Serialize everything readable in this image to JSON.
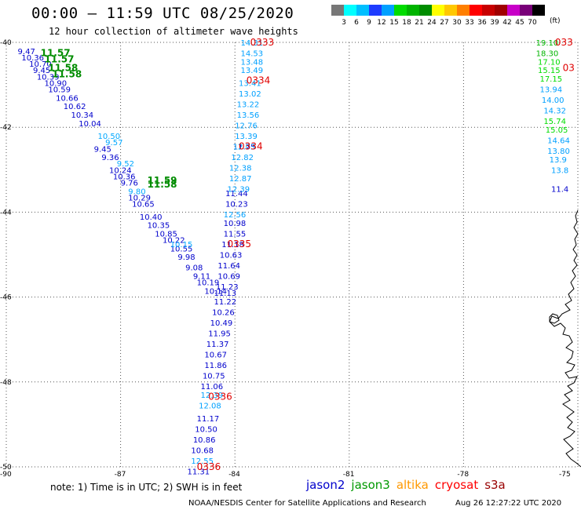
{
  "header": {
    "title": "00:00 — 11:59 UTC 08/25/2020",
    "subtitle": "12 hour collection of altimeter wave heights"
  },
  "colorbar": {
    "colors": [
      "#777777",
      "#00ffff",
      "#00bfff",
      "#1e3cff",
      "#00a0ff",
      "#00dc00",
      "#00b400",
      "#008c00",
      "#ffff00",
      "#ffc800",
      "#ff7f00",
      "#ff0000",
      "#c80000",
      "#a00000",
      "#c800c8",
      "#780078",
      "#000000"
    ],
    "labels": [
      "3",
      "6",
      "9",
      "12",
      "15",
      "18",
      "21",
      "24",
      "27",
      "30",
      "33",
      "36",
      "39",
      "42",
      "45",
      "70"
    ],
    "unit": "(ft)"
  },
  "chart_data": {
    "type": "scatter",
    "title": "00:00 — 11:59 UTC 08/25/2020",
    "subtitle": "12 hour collection of altimeter wave heights",
    "xlim": [
      -90,
      -75
    ],
    "ylim": [
      -50,
      -40
    ],
    "x_ticks": [
      "-90",
      "-87",
      "-84",
      "-81",
      "-78",
      "-75"
    ],
    "y_ticks": [
      "-40",
      "-42",
      "-44",
      "-46",
      "-48",
      "-50"
    ],
    "series": [
      {
        "name": "jason2",
        "points": [
          {
            "lon": -89.7,
            "lat": -40.2,
            "v": "9.47"
          },
          {
            "lon": -89.6,
            "lat": -40.35,
            "v": "10.36"
          },
          {
            "lon": -89.4,
            "lat": -40.5,
            "v": "10.70"
          },
          {
            "lon": -89.3,
            "lat": -40.65,
            "v": "9.45"
          },
          {
            "lon": -89.2,
            "lat": -40.8,
            "v": "10.39"
          },
          {
            "lon": -89.0,
            "lat": -40.95,
            "v": "10.90"
          },
          {
            "lon": -88.9,
            "lat": -41.1,
            "v": "10.59"
          },
          {
            "lon": -88.7,
            "lat": -41.3,
            "v": "10.66"
          },
          {
            "lon": -88.5,
            "lat": -41.5,
            "v": "10.62"
          },
          {
            "lon": -88.3,
            "lat": -41.7,
            "v": "10.34"
          },
          {
            "lon": -88.1,
            "lat": -41.9,
            "v": "10.04"
          },
          {
            "lon": -87.7,
            "lat": -42.5,
            "v": "9.45"
          },
          {
            "lon": -87.5,
            "lat": -42.7,
            "v": "9.36"
          },
          {
            "lon": -87.3,
            "lat": -43.0,
            "v": "10.24"
          },
          {
            "lon": -87.2,
            "lat": -43.15,
            "v": "10.36"
          },
          {
            "lon": -87.0,
            "lat": -43.3,
            "v": "9.76"
          },
          {
            "lon": -86.8,
            "lat": -43.65,
            "v": "10.29"
          },
          {
            "lon": -86.7,
            "lat": -43.8,
            "v": "10.65"
          },
          {
            "lon": -86.5,
            "lat": -44.1,
            "v": "10.40"
          },
          {
            "lon": -86.3,
            "lat": -44.3,
            "v": "10.35"
          },
          {
            "lon": -86.1,
            "lat": -44.5,
            "v": "10.85"
          },
          {
            "lon": -85.9,
            "lat": -44.65,
            "v": "10.22"
          },
          {
            "lon": -85.7,
            "lat": -44.85,
            "v": "10.55"
          },
          {
            "lon": -85.5,
            "lat": -45.05,
            "v": "9.98"
          },
          {
            "lon": -85.3,
            "lat": -45.3,
            "v": "9.08"
          },
          {
            "lon": -85.1,
            "lat": -45.5,
            "v": "9.11"
          },
          {
            "lon": -85.0,
            "lat": -45.65,
            "v": "10.19"
          },
          {
            "lon": -84.8,
            "lat": -45.85,
            "v": "10.14"
          },
          {
            "lon": -84.05,
            "lat": -42.45,
            "v": "11.75"
          },
          {
            "lon": -84.25,
            "lat": -43.55,
            "v": "11.44"
          },
          {
            "lon": -84.25,
            "lat": -43.8,
            "v": "10.23"
          },
          {
            "lon": -84.3,
            "lat": -44.25,
            "v": "10.98"
          },
          {
            "lon": -84.3,
            "lat": -44.5,
            "v": "11.55"
          },
          {
            "lon": -84.35,
            "lat": -44.75,
            "v": "11.18"
          },
          {
            "lon": -84.4,
            "lat": -45.0,
            "v": "10.63"
          },
          {
            "lon": -84.45,
            "lat": -45.25,
            "v": "11.64"
          },
          {
            "lon": -84.45,
            "lat": -45.5,
            "v": "10.69"
          },
          {
            "lon": -84.5,
            "lat": -45.75,
            "v": "11.23"
          },
          {
            "lon": -84.55,
            "lat": -45.9,
            "v": "11.13"
          },
          {
            "lon": -84.55,
            "lat": -46.1,
            "v": "11.22"
          },
          {
            "lon": -84.6,
            "lat": -46.35,
            "v": "10.26"
          },
          {
            "lon": -84.65,
            "lat": -46.6,
            "v": "10.49"
          },
          {
            "lon": -84.7,
            "lat": -46.85,
            "v": "11.95"
          },
          {
            "lon": -84.75,
            "lat": -47.1,
            "v": "11.37"
          },
          {
            "lon": -84.8,
            "lat": -47.35,
            "v": "10.67"
          },
          {
            "lon": -84.8,
            "lat": -47.6,
            "v": "11.86"
          },
          {
            "lon": -84.85,
            "lat": -47.85,
            "v": "10.75"
          },
          {
            "lon": -84.9,
            "lat": -48.1,
            "v": "11.06"
          },
          {
            "lon": -85.0,
            "lat": -48.85,
            "v": "11.17"
          },
          {
            "lon": -85.05,
            "lat": -49.1,
            "v": "10.50"
          },
          {
            "lon": -85.1,
            "lat": -49.35,
            "v": "10.86"
          },
          {
            "lon": -85.15,
            "lat": -49.6,
            "v": "10.68"
          },
          {
            "lon": -85.25,
            "lat": -50.1,
            "v": "11.31"
          },
          {
            "lon": -75.7,
            "lat": -43.45,
            "v": "11.4"
          }
        ]
      },
      {
        "name": "jason3",
        "points": [
          {
            "lon": -89.1,
            "lat": -40.25,
            "v": "11.57"
          },
          {
            "lon": -89.0,
            "lat": -40.4,
            "v": "11.57"
          },
          {
            "lon": -88.9,
            "lat": -40.6,
            "v": "11.58"
          },
          {
            "lon": -88.8,
            "lat": -40.75,
            "v": "11.58"
          },
          {
            "lon": -86.3,
            "lat": -43.25,
            "v": "11.59"
          },
          {
            "lon": -86.3,
            "lat": -43.35,
            "v": "11.58"
          },
          {
            "lon": -83.85,
            "lat": -40.0,
            "v": "14.31"
          },
          {
            "lon": -83.85,
            "lat": -40.25,
            "v": "14.53"
          },
          {
            "lon": -83.85,
            "lat": -40.45,
            "v": "13.48"
          },
          {
            "lon": -83.85,
            "lat": -40.65,
            "v": "13.49"
          },
          {
            "lon": -83.9,
            "lat": -40.95,
            "v": "13.41"
          },
          {
            "lon": -83.9,
            "lat": -41.2,
            "v": "13.02"
          },
          {
            "lon": -83.95,
            "lat": -41.45,
            "v": "13.22"
          },
          {
            "lon": -83.95,
            "lat": -41.7,
            "v": "13.56"
          },
          {
            "lon": -84.0,
            "lat": -41.95,
            "v": "12.76"
          },
          {
            "lon": -84.0,
            "lat": -42.2,
            "v": "13.39"
          },
          {
            "lon": -84.05,
            "lat": -42.45,
            "v": "12.03"
          },
          {
            "lon": -84.1,
            "lat": -42.7,
            "v": "12.82"
          },
          {
            "lon": -84.15,
            "lat": -42.95,
            "v": "12.38"
          },
          {
            "lon": -84.15,
            "lat": -43.2,
            "v": "12.87"
          },
          {
            "lon": -84.2,
            "lat": -43.45,
            "v": "12.39"
          },
          {
            "lon": -84.3,
            "lat": -44.05,
            "v": "12.56"
          },
          {
            "lon": -84.9,
            "lat": -48.3,
            "v": "12.39"
          },
          {
            "lon": -84.95,
            "lat": -48.55,
            "v": "12.08"
          },
          {
            "lon": -85.15,
            "lat": -49.85,
            "v": "12.55"
          },
          {
            "lon": -76.1,
            "lat": -40.0,
            "v": "19.10"
          },
          {
            "lon": -76.1,
            "lat": -40.25,
            "v": "18.30"
          },
          {
            "lon": -76.05,
            "lat": -40.45,
            "v": "17.10"
          },
          {
            "lon": -76.05,
            "lat": -40.65,
            "v": "15.15"
          },
          {
            "lon": -76.0,
            "lat": -40.85,
            "v": "17.15"
          },
          {
            "lon": -76.0,
            "lat": -41.1,
            "v": "13.94"
          },
          {
            "lon": -75.95,
            "lat": -41.35,
            "v": "14.00"
          },
          {
            "lon": -75.9,
            "lat": -41.6,
            "v": "14.32"
          },
          {
            "lon": -75.9,
            "lat": -41.85,
            "v": "15.74"
          },
          {
            "lon": -75.85,
            "lat": -42.05,
            "v": "15.05"
          },
          {
            "lon": -75.8,
            "lat": -42.3,
            "v": "14.64"
          },
          {
            "lon": -75.8,
            "lat": -42.55,
            "v": "13.80"
          },
          {
            "lon": -75.75,
            "lat": -42.75,
            "v": "13.9"
          },
          {
            "lon": -75.7,
            "lat": -43.0,
            "v": "13.8"
          }
        ]
      },
      {
        "name": "cryosat",
        "points": [
          {
            "lon": -87.6,
            "lat": -42.2,
            "v": "10.50"
          },
          {
            "lon": -87.4,
            "lat": -42.35,
            "v": "9.57"
          },
          {
            "lon": -87.1,
            "lat": -42.85,
            "v": "9.52"
          },
          {
            "lon": -86.8,
            "lat": -43.5,
            "v": "9.80"
          },
          {
            "lon": -85.7,
            "lat": -44.75,
            "v": "10.15"
          }
        ]
      }
    ],
    "time_labels": [
      {
        "lon": -83.6,
        "lat": -40.0,
        "text": "0333"
      },
      {
        "lon": -75.6,
        "lat": -40.0,
        "text": "033"
      },
      {
        "lon": -75.4,
        "lat": -40.6,
        "text": "03"
      },
      {
        "lon": -83.7,
        "lat": -40.9,
        "text": "0334"
      },
      {
        "lon": -83.9,
        "lat": -42.45,
        "text": "0334"
      },
      {
        "lon": -84.2,
        "lat": -44.75,
        "text": "0335"
      },
      {
        "lon": -84.7,
        "lat": -48.35,
        "text": "0336"
      },
      {
        "lon": -85.0,
        "lat": -50.0,
        "text": "0336"
      }
    ],
    "grid": true
  },
  "note": "note: 1) Time is in UTC; 2) SWH is in feet",
  "legend": [
    {
      "name": "jason2",
      "color": "#0000cc"
    },
    {
      "name": "jason3",
      "color": "#009900"
    },
    {
      "name": "altika",
      "color": "#ff9900"
    },
    {
      "name": "cryosat",
      "color": "#ff0000"
    },
    {
      "name": "s3a",
      "color": "#990000"
    }
  ],
  "footer": {
    "left": "NOAA/NESDIS Center for Satellite Applications and Research",
    "right": "Aug 26 12:27:22 UTC 2020"
  },
  "colors": {
    "time_label": "#e00000",
    "grid": "#555555"
  }
}
